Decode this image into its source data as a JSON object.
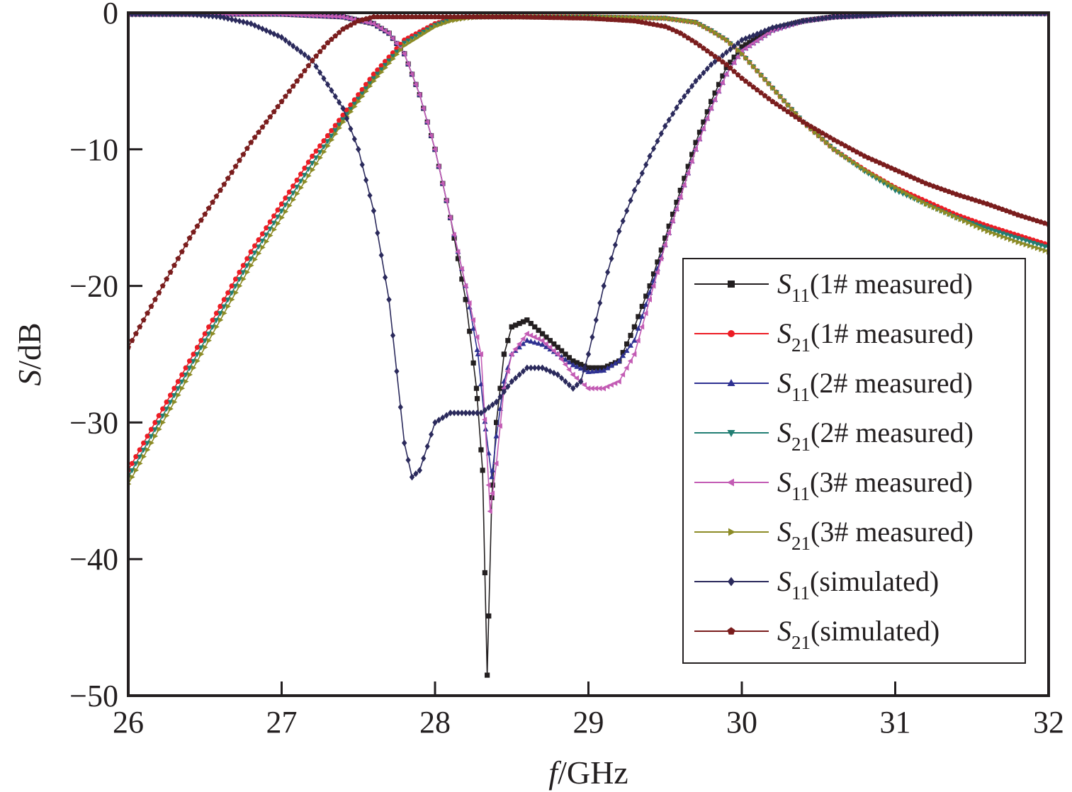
{
  "chart_data": {
    "type": "line",
    "xlabel": {
      "italic": "f",
      "rest": "/GHz"
    },
    "ylabel": {
      "italic": "S",
      "rest": "/dB"
    },
    "xlim": [
      26,
      32
    ],
    "ylim": [
      -50,
      0
    ],
    "xticks": [
      26,
      27,
      28,
      29,
      30,
      31,
      32
    ],
    "yticks": [
      0,
      -10,
      -20,
      -30,
      -40,
      -50
    ],
    "xtick_labels": [
      "26",
      "27",
      "28",
      "29",
      "30",
      "31",
      "32"
    ],
    "ytick_labels": [
      "0",
      "−10",
      "−20",
      "−30",
      "−40",
      "−50"
    ],
    "grid": false,
    "legend_position": "lower-right",
    "series": [
      {
        "name": "S11(1# measured)",
        "legend": {
          "main": "S",
          "sub": "11",
          "text": "(1# measured)"
        },
        "color": "#231f20",
        "marker": "square",
        "x": [
          26.0,
          26.5,
          27.0,
          27.4,
          27.6,
          27.7,
          27.8,
          27.9,
          28.0,
          28.1,
          28.2,
          28.27,
          28.31,
          28.34,
          28.37,
          28.4,
          28.45,
          28.5,
          28.6,
          28.7,
          28.8,
          28.9,
          29.0,
          29.1,
          29.2,
          29.3,
          29.4,
          29.5,
          29.6,
          29.7,
          29.8,
          29.9,
          30.0,
          30.2,
          30.4,
          30.6,
          31.0,
          31.5,
          32.0
        ],
        "y": [
          -0.1,
          -0.1,
          -0.1,
          -0.3,
          -0.8,
          -1.5,
          -3.0,
          -6.0,
          -10.0,
          -15.0,
          -21.0,
          -27.5,
          -33.5,
          -48.5,
          -35.5,
          -30.0,
          -25.0,
          -23.0,
          -22.5,
          -23.5,
          -24.5,
          -25.5,
          -26.0,
          -26.0,
          -25.5,
          -23.0,
          -20.0,
          -16.5,
          -13.0,
          -9.5,
          -6.5,
          -4.0,
          -2.5,
          -1.2,
          -0.6,
          -0.3,
          -0.1,
          -0.05,
          -0.05
        ]
      },
      {
        "name": "S21(1# measured)",
        "legend": {
          "main": "S",
          "sub": "21",
          "text": "(1# measured)"
        },
        "color": "#ed1c24",
        "marker": "circle",
        "x": [
          26.0,
          26.2,
          26.4,
          26.6,
          26.8,
          27.0,
          27.2,
          27.4,
          27.6,
          27.8,
          28.0,
          28.1,
          28.2,
          28.3,
          28.5,
          29.0,
          29.5,
          29.7,
          29.8,
          29.9,
          30.0,
          30.2,
          30.4,
          30.6,
          30.8,
          31.0,
          31.2,
          31.4,
          31.6,
          31.8,
          32.0
        ],
        "y": [
          -33.5,
          -29.5,
          -25.5,
          -21.5,
          -17.5,
          -14.0,
          -10.5,
          -7.5,
          -4.5,
          -2.0,
          -0.8,
          -0.5,
          -0.3,
          -0.3,
          -0.3,
          -0.3,
          -0.4,
          -0.7,
          -1.3,
          -2.0,
          -3.0,
          -5.5,
          -8.0,
          -10.0,
          -11.5,
          -12.8,
          -13.8,
          -14.8,
          -15.6,
          -16.3,
          -17.0
        ]
      },
      {
        "name": "S11(2# measured)",
        "legend": {
          "main": "S",
          "sub": "11",
          "text": "(2# measured)"
        },
        "color": "#2e3192",
        "marker": "triangle-up",
        "x": [
          26.0,
          26.5,
          27.0,
          27.4,
          27.6,
          27.7,
          27.8,
          27.9,
          28.0,
          28.1,
          28.2,
          28.28,
          28.33,
          28.37,
          28.4,
          28.45,
          28.5,
          28.6,
          28.7,
          28.8,
          28.9,
          29.0,
          29.1,
          29.2,
          29.3,
          29.4,
          29.5,
          29.6,
          29.7,
          29.8,
          29.9,
          30.0,
          30.2,
          30.4,
          30.6,
          31.0,
          31.5,
          32.0
        ],
        "y": [
          -0.1,
          -0.1,
          -0.1,
          -0.3,
          -0.8,
          -1.5,
          -3.0,
          -6.0,
          -10.0,
          -15.0,
          -20.0,
          -25.0,
          -30.5,
          -34.0,
          -31.0,
          -27.0,
          -25.0,
          -24.0,
          -24.3,
          -25.0,
          -25.8,
          -26.3,
          -26.2,
          -25.5,
          -24.0,
          -20.5,
          -17.0,
          -13.5,
          -10.0,
          -7.0,
          -4.5,
          -2.8,
          -1.3,
          -0.6,
          -0.3,
          -0.1,
          -0.05,
          -0.05
        ]
      },
      {
        "name": "S21(2# measured)",
        "legend": {
          "main": "S",
          "sub": "21",
          "text": "(2# measured)"
        },
        "color": "#217e73",
        "marker": "triangle-down",
        "x": [
          26.0,
          26.2,
          26.4,
          26.6,
          26.8,
          27.0,
          27.2,
          27.4,
          27.6,
          27.8,
          28.0,
          28.1,
          28.2,
          28.3,
          28.5,
          29.0,
          29.5,
          29.7,
          29.8,
          29.9,
          30.0,
          30.2,
          30.4,
          30.6,
          30.8,
          31.0,
          31.2,
          31.4,
          31.6,
          31.8,
          32.0
        ],
        "y": [
          -34.0,
          -30.0,
          -26.0,
          -22.0,
          -18.0,
          -14.5,
          -11.0,
          -7.8,
          -4.8,
          -2.2,
          -0.9,
          -0.5,
          -0.3,
          -0.3,
          -0.3,
          -0.3,
          -0.4,
          -0.7,
          -1.3,
          -2.0,
          -3.0,
          -5.5,
          -8.0,
          -10.0,
          -11.6,
          -13.0,
          -14.0,
          -15.0,
          -15.8,
          -16.5,
          -17.2
        ]
      },
      {
        "name": "S11(3# measured)",
        "legend": {
          "main": "S",
          "sub": "11",
          "text": "(3# measured)"
        },
        "color": "#c35cb4",
        "marker": "triangle-left",
        "x": [
          26.0,
          26.5,
          27.0,
          27.4,
          27.6,
          27.7,
          27.8,
          27.9,
          28.0,
          28.1,
          28.2,
          28.3,
          28.36,
          28.4,
          28.45,
          28.5,
          28.6,
          28.7,
          28.8,
          28.9,
          29.0,
          29.1,
          29.2,
          29.3,
          29.4,
          29.5,
          29.6,
          29.7,
          29.8,
          29.9,
          30.0,
          30.2,
          30.4,
          30.6,
          31.0,
          31.5,
          32.0
        ],
        "y": [
          -0.1,
          -0.1,
          -0.1,
          -0.3,
          -0.8,
          -1.5,
          -3.0,
          -6.0,
          -10.0,
          -15.0,
          -20.0,
          -25.0,
          -36.5,
          -33.0,
          -27.5,
          -25.0,
          -23.5,
          -24.0,
          -25.0,
          -26.5,
          -27.5,
          -27.5,
          -27.0,
          -25.0,
          -21.0,
          -17.0,
          -13.5,
          -10.0,
          -7.0,
          -4.5,
          -2.8,
          -1.3,
          -0.6,
          -0.3,
          -0.1,
          -0.05,
          -0.05
        ]
      },
      {
        "name": "S21(3# measured)",
        "legend": {
          "main": "S",
          "sub": "21",
          "text": "(3# measured)"
        },
        "color": "#8c8b26",
        "marker": "triangle-right",
        "x": [
          26.0,
          26.2,
          26.4,
          26.6,
          26.8,
          27.0,
          27.2,
          27.4,
          27.6,
          27.8,
          28.0,
          28.1,
          28.2,
          28.3,
          28.5,
          29.0,
          29.5,
          29.7,
          29.8,
          29.9,
          30.0,
          30.2,
          30.4,
          30.6,
          30.8,
          31.0,
          31.2,
          31.4,
          31.6,
          31.8,
          32.0
        ],
        "y": [
          -34.5,
          -30.5,
          -26.5,
          -22.5,
          -18.5,
          -15.0,
          -11.5,
          -8.0,
          -5.0,
          -2.4,
          -1.0,
          -0.6,
          -0.4,
          -0.3,
          -0.3,
          -0.3,
          -0.4,
          -0.7,
          -1.3,
          -2.0,
          -3.0,
          -5.5,
          -8.0,
          -10.0,
          -11.5,
          -12.8,
          -14.0,
          -15.0,
          -16.0,
          -16.8,
          -17.5
        ]
      },
      {
        "name": "S11(simulated)",
        "legend": {
          "main": "S",
          "sub": "11",
          "text": "(simulated)"
        },
        "color": "#2b2a5c",
        "marker": "diamond",
        "x": [
          26.0,
          26.4,
          26.6,
          26.8,
          27.0,
          27.2,
          27.4,
          27.5,
          27.6,
          27.7,
          27.8,
          27.85,
          27.9,
          28.0,
          28.1,
          28.2,
          28.3,
          28.4,
          28.5,
          28.6,
          28.7,
          28.8,
          28.9,
          28.95,
          29.0,
          29.1,
          29.2,
          29.3,
          29.4,
          29.5,
          29.6,
          29.7,
          29.8,
          30.0,
          30.2,
          30.4,
          30.6,
          30.8,
          31.0,
          31.5,
          32.0
        ],
        "y": [
          -0.1,
          -0.1,
          -0.3,
          -0.8,
          -1.8,
          -3.5,
          -7.0,
          -10.0,
          -14.5,
          -21.0,
          -31.5,
          -34.0,
          -33.5,
          -30.0,
          -29.3,
          -29.3,
          -29.3,
          -28.5,
          -27.0,
          -26.0,
          -26.0,
          -26.5,
          -27.5,
          -27.0,
          -25.0,
          -20.0,
          -16.0,
          -13.0,
          -10.5,
          -8.3,
          -6.5,
          -5.0,
          -3.8,
          -2.0,
          -1.1,
          -0.6,
          -0.3,
          -0.2,
          -0.1,
          -0.05,
          -0.05
        ]
      },
      {
        "name": "S21(simulated)",
        "legend": {
          "main": "S",
          "sub": "21",
          "text": "(simulated)"
        },
        "color": "#7a1d1d",
        "marker": "pentagon",
        "x": [
          26.0,
          26.2,
          26.4,
          26.6,
          26.8,
          27.0,
          27.1,
          27.2,
          27.3,
          27.4,
          27.5,
          27.6,
          27.8,
          28.0,
          28.5,
          29.0,
          29.3,
          29.5,
          29.6,
          29.7,
          29.8,
          29.9,
          30.0,
          30.2,
          30.4,
          30.6,
          30.8,
          31.0,
          31.2,
          31.4,
          31.6,
          31.8,
          32.0
        ],
        "y": [
          -24.5,
          -20.5,
          -16.5,
          -13.0,
          -9.5,
          -6.5,
          -5.0,
          -3.5,
          -2.2,
          -1.2,
          -0.6,
          -0.3,
          -0.3,
          -0.3,
          -0.3,
          -0.4,
          -0.6,
          -1.0,
          -1.5,
          -2.2,
          -3.0,
          -3.8,
          -4.8,
          -6.5,
          -8.0,
          -9.3,
          -10.5,
          -11.5,
          -12.5,
          -13.3,
          -14.0,
          -14.8,
          -15.5
        ]
      }
    ]
  }
}
